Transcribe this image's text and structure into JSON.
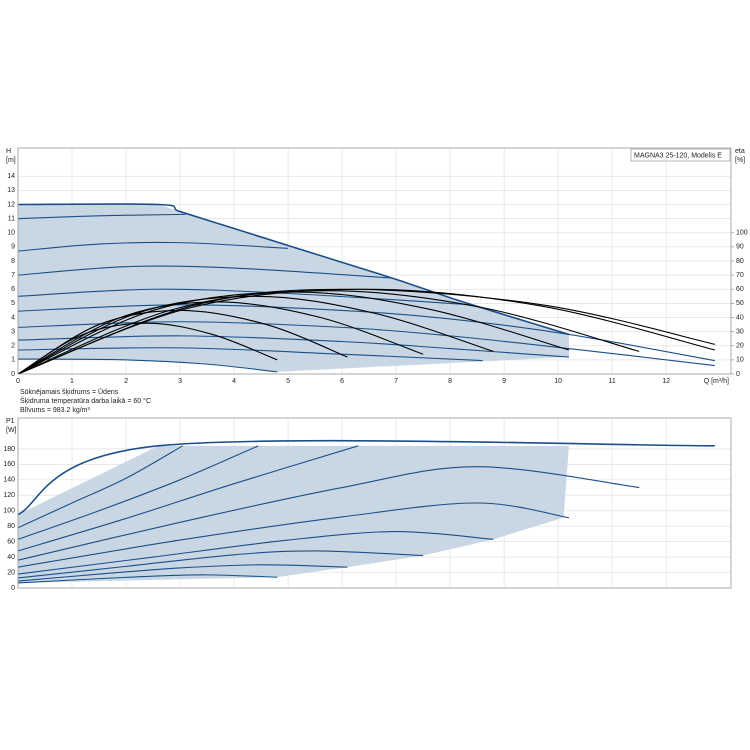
{
  "chart_data": [
    {
      "type": "line",
      "title": "MAGNA3 25-120, Modelis E",
      "x_label": "Q [m³/h]",
      "y_label": [
        "H",
        "[m]"
      ],
      "y2_label": [
        "eta",
        "[%]"
      ],
      "notes": [
        "Sūknējamais šķidrums = Ūdens",
        "Šķidruma temperatūra darba laikā = 60 °C",
        "Blīvums = 983.2 kg/m³"
      ],
      "xlim": [
        0,
        13.2
      ],
      "ylim": [
        0,
        16
      ],
      "y2lim": [
        0,
        160
      ],
      "xticks": [
        0,
        1,
        2,
        3,
        4,
        5,
        6,
        7,
        8,
        9,
        10,
        11,
        12
      ],
      "yticks": [
        0,
        1,
        2,
        3,
        4,
        5,
        6,
        7,
        8,
        9,
        10,
        11,
        12,
        13,
        14
      ],
      "y2ticks": [
        0,
        10,
        20,
        30,
        40,
        50,
        60,
        70,
        80,
        90,
        100
      ],
      "grid": true,
      "area": {
        "color": "#c9d7e4",
        "x": [
          0,
          2.6,
          3,
          4,
          5,
          6,
          7,
          8,
          9,
          10.2,
          10.2,
          4.8,
          3.5,
          2,
          0
        ],
        "values": [
          12,
          12,
          11.5,
          10.3,
          9.1,
          7.9,
          6.7,
          5.4,
          4.2,
          2.8,
          1.2,
          0.15,
          0.7,
          1.0,
          1.06
        ]
      },
      "series": [
        {
          "color": "#1b4f8a",
          "x": [
            0,
            2.6,
            3,
            4,
            5,
            6,
            7,
            8,
            9,
            10.2
          ],
          "values": [
            12,
            12,
            11.5,
            10.3,
            9.1,
            7.9,
            6.7,
            5.4,
            4.2,
            2.8
          ]
        },
        {
          "color": "#1b4f8a",
          "x": [
            0,
            1.5,
            3.1
          ],
          "values": [
            11.0,
            11.2,
            11.3
          ]
        },
        {
          "color": "#1b4f8a",
          "x": [
            0,
            1.5,
            3,
            5
          ],
          "values": [
            8.7,
            9.2,
            9.3,
            8.9
          ]
        },
        {
          "color": "#1b4f8a",
          "x": [
            0,
            2,
            4,
            6.9
          ],
          "values": [
            7.0,
            7.6,
            7.5,
            6.8
          ]
        },
        {
          "color": "#1b4f8a",
          "x": [
            0,
            2.5,
            5,
            8.4
          ],
          "values": [
            5.5,
            6.0,
            5.7,
            4.9
          ]
        },
        {
          "color": "#1b4f8a",
          "x": [
            0,
            3,
            6,
            8,
            10.2,
            12.9
          ],
          "values": [
            4.45,
            4.9,
            4.5,
            3.9,
            2.8,
            0.95
          ]
        },
        {
          "color": "#1b4f8a",
          "x": [
            0,
            3,
            6,
            8,
            10.2,
            12.9
          ],
          "values": [
            3.3,
            3.7,
            3.3,
            2.7,
            1.8,
            0.6
          ]
        },
        {
          "color": "#1b4f8a",
          "x": [
            0,
            3,
            6,
            8,
            10.2
          ],
          "values": [
            2.4,
            2.7,
            2.3,
            1.8,
            1.2
          ]
        },
        {
          "color": "#1b4f8a",
          "x": [
            0,
            3,
            6,
            8.6
          ],
          "values": [
            1.7,
            1.85,
            1.4,
            0.95
          ]
        },
        {
          "color": "#1b4f8a",
          "x": [
            0,
            2,
            3.5,
            4.8
          ],
          "values": [
            1.06,
            1.0,
            0.7,
            0.15
          ]
        },
        {
          "color": "#000000",
          "axis": "y2",
          "x": [
            0,
            1.2,
            2.4,
            3.6,
            4.8
          ],
          "values": [
            0,
            28,
            36,
            28,
            10
          ]
        },
        {
          "color": "#000000",
          "axis": "y2",
          "x": [
            0,
            1.5,
            3,
            4.6,
            6.1
          ],
          "values": [
            0,
            35,
            45,
            35,
            12
          ]
        },
        {
          "color": "#000000",
          "axis": "y2",
          "x": [
            0,
            1.9,
            3.7,
            5.6,
            7.5
          ],
          "values": [
            0,
            40,
            51,
            40,
            14
          ]
        },
        {
          "color": "#000000",
          "axis": "y2",
          "x": [
            0,
            2.2,
            4.4,
            6.6,
            8.8
          ],
          "values": [
            0,
            43,
            55,
            43,
            16
          ]
        },
        {
          "color": "#000000",
          "axis": "y2",
          "x": [
            0,
            2.5,
            5.1,
            7.6,
            10.2
          ],
          "values": [
            0,
            45,
            58,
            46,
            17
          ]
        },
        {
          "color": "#000000",
          "axis": "y2",
          "x": [
            0,
            2.9,
            5.7,
            8.6,
            11.5
          ],
          "values": [
            0,
            46,
            59,
            47,
            16
          ]
        },
        {
          "color": "#000000",
          "axis": "y2",
          "x": [
            0,
            3.2,
            6.4,
            9.7,
            12.9
          ],
          "values": [
            0,
            47,
            60,
            48,
            17
          ]
        },
        {
          "color": "#000000",
          "axis": "y2",
          "x": [
            0,
            3.2,
            6,
            9.7,
            12.9
          ],
          "values": [
            0,
            48,
            60,
            49,
            21
          ]
        }
      ]
    },
    {
      "type": "line",
      "y_label": [
        "P1",
        "[W]"
      ],
      "xlim": [
        0,
        13.2
      ],
      "ylim": [
        0,
        220
      ],
      "xticks": [
        0,
        1,
        2,
        3,
        4,
        5,
        6,
        7,
        8,
        9,
        10,
        11,
        12
      ],
      "yticks": [
        0,
        20,
        40,
        60,
        80,
        100,
        120,
        140,
        160,
        180
      ],
      "grid": true,
      "area": {
        "color": "#c9d7e4",
        "x": [
          0,
          2.6,
          10.2,
          10.1,
          8.8,
          7.5,
          6.1,
          4.8,
          0
        ],
        "values": [
          95,
          184,
          184,
          91,
          63,
          42,
          27,
          14,
          6.5
        ]
      },
      "series": [
        {
          "color": "#1b4f8a",
          "x": [
            0,
            2.6,
            12.9
          ],
          "values": [
            95,
            184,
            184
          ]
        },
        {
          "color": "#1b4f8a",
          "x": [
            0,
            1,
            2,
            3.05
          ],
          "values": [
            78,
            110,
            142,
            184
          ]
        },
        {
          "color": "#1b4f8a",
          "x": [
            0,
            1.5,
            3,
            4.45
          ],
          "values": [
            63,
            100,
            140,
            184
          ]
        },
        {
          "color": "#1b4f8a",
          "x": [
            0,
            2,
            4,
            6.3
          ],
          "values": [
            48,
            90,
            135,
            184
          ]
        },
        {
          "color": "#1b4f8a",
          "x": [
            0,
            3,
            6,
            8.5,
            11.5
          ],
          "values": [
            36,
            85,
            130,
            157,
            130
          ]
        },
        {
          "color": "#1b4f8a",
          "x": [
            0,
            3,
            6,
            8.5,
            10.2
          ],
          "values": [
            27,
            62,
            92,
            110,
            91
          ]
        },
        {
          "color": "#1b4f8a",
          "x": [
            0,
            2.5,
            5,
            7,
            8.8
          ],
          "values": [
            18,
            40,
            62,
            73,
            63
          ]
        },
        {
          "color": "#1b4f8a",
          "x": [
            0,
            2,
            4,
            5.5,
            7.5
          ],
          "values": [
            13,
            28,
            43,
            48,
            42
          ]
        },
        {
          "color": "#1b4f8a",
          "x": [
            0,
            1.5,
            3,
            4.5,
            6.1
          ],
          "values": [
            9,
            18,
            26,
            30,
            27
          ]
        },
        {
          "color": "#1b4f8a",
          "x": [
            0,
            1.2,
            2.4,
            3.5,
            4.8
          ],
          "values": [
            6.5,
            11,
            15,
            17,
            14
          ]
        }
      ]
    }
  ]
}
